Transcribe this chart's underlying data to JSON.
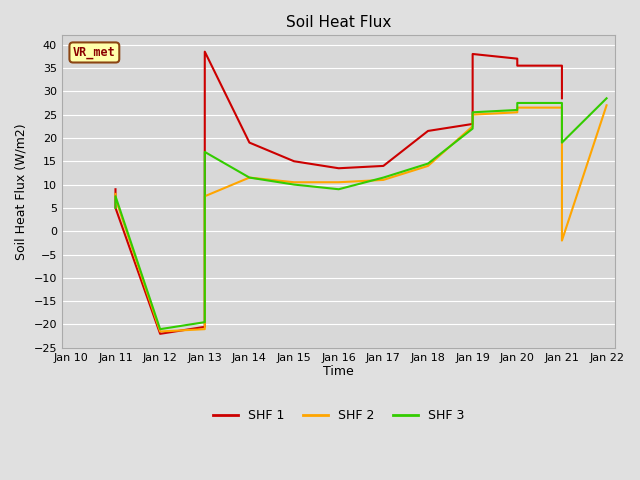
{
  "title": "Soil Heat Flux",
  "xlabel": "Time",
  "ylabel": "Soil Heat Flux (W/m2)",
  "ylim": [
    -25,
    42
  ],
  "yticks": [
    -25,
    -20,
    -15,
    -10,
    -5,
    0,
    5,
    10,
    15,
    20,
    25,
    30,
    35,
    40
  ],
  "x_labels": [
    "Jan 10",
    "Jan 11",
    "Jan 12",
    "Jan 13",
    "Jan 14",
    "Jan 15",
    "Jan 16",
    "Jan 17",
    "Jan 18",
    "Jan 19",
    "Jan 20",
    "Jan 21",
    "Jan 22"
  ],
  "x_values": [
    0,
    1,
    2,
    3,
    4,
    5,
    6,
    7,
    8,
    9,
    10,
    11,
    12
  ],
  "annotation_text": "VR_met",
  "annotation_color": "#8B0000",
  "annotation_bg": "#FFFFAA",
  "annotation_edge": "#8B4513",
  "shf1": {
    "color": "#CC0000",
    "label": "SHF 1",
    "x": [
      1,
      1,
      2,
      3,
      3,
      4,
      5,
      6,
      7,
      8,
      9,
      9,
      10,
      10,
      11,
      11
    ],
    "y": [
      9,
      5,
      -22,
      -20.5,
      38.5,
      19,
      15,
      13.5,
      14,
      21.5,
      23,
      38,
      37,
      35.5,
      35.5,
      28.5
    ]
  },
  "shf2": {
    "color": "#FFA500",
    "label": "SHF 2",
    "x": [
      1,
      1,
      2,
      3,
      3,
      4,
      5,
      6,
      7,
      8,
      9,
      9,
      10,
      10,
      11,
      11,
      12
    ],
    "y": [
      8,
      7,
      -21.5,
      -21,
      7.5,
      11.5,
      10.5,
      10.5,
      11,
      14,
      22.5,
      25,
      25.5,
      26.5,
      26.5,
      -2,
      27
    ]
  },
  "shf3": {
    "color": "#33CC00",
    "label": "SHF 3",
    "x": [
      1,
      1,
      2,
      3,
      3,
      4,
      5,
      6,
      7,
      8,
      9,
      9,
      10,
      10,
      11,
      11,
      12
    ],
    "y": [
      5,
      7.5,
      -21,
      -19.5,
      17,
      11.5,
      10,
      9,
      11.5,
      14.5,
      22,
      25.5,
      26,
      27.5,
      27.5,
      19,
      28.5
    ]
  },
  "fig_bg": "#e0e0e0",
  "plot_bg": "#d8d8d8",
  "grid_color": "#ffffff",
  "legend_entries": [
    "SHF 1",
    "SHF 2",
    "SHF 3"
  ],
  "legend_colors": [
    "#CC0000",
    "#FFA500",
    "#33CC00"
  ]
}
